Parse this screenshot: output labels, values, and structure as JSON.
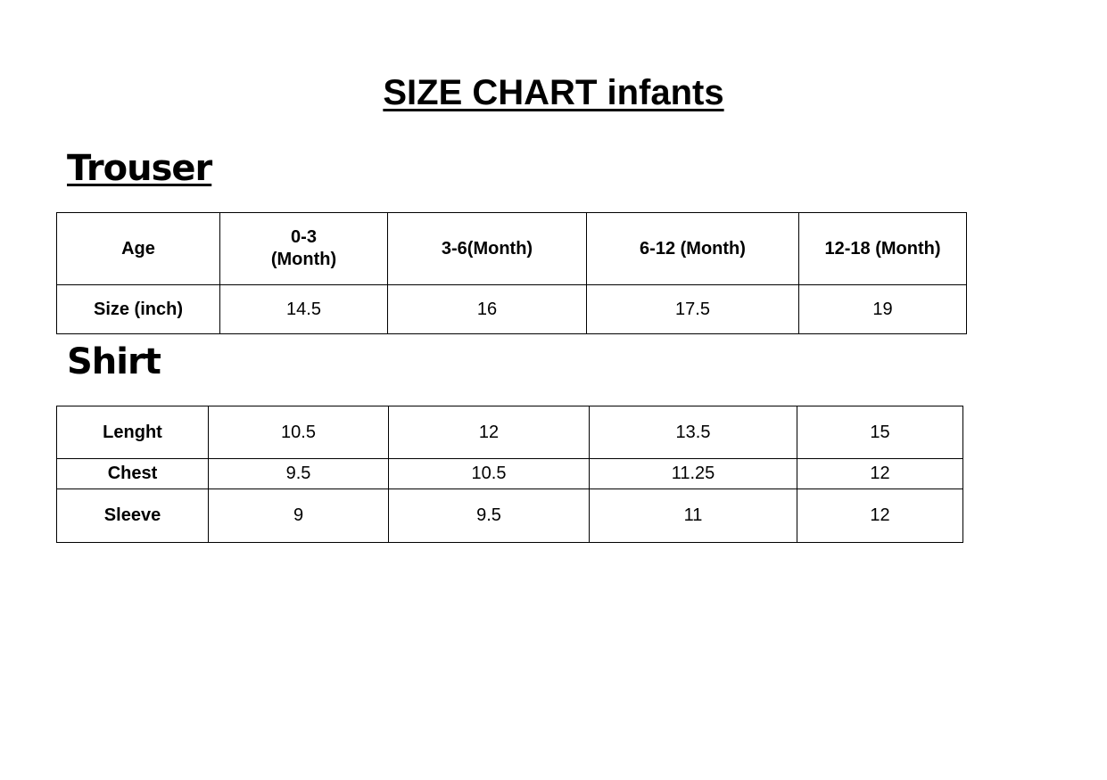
{
  "title": "SIZE CHART infants",
  "trouser": {
    "heading": "Trouser",
    "header": [
      "Age",
      "0-3\n(Month)",
      "3-6(Month)",
      "6-12 (Month)",
      "12-18 (Month)"
    ],
    "row": [
      "Size (inch)",
      "14.5",
      "16",
      "17.5",
      "19"
    ]
  },
  "shirt": {
    "heading": "Shirt",
    "rows": [
      [
        "Lenght",
        "10.5",
        "12",
        "13.5",
        "15"
      ],
      [
        "Chest",
        "9.5",
        "10.5",
        "11.25",
        "12"
      ],
      [
        "Sleeve",
        "9",
        "9.5",
        "11",
        "12"
      ]
    ]
  }
}
